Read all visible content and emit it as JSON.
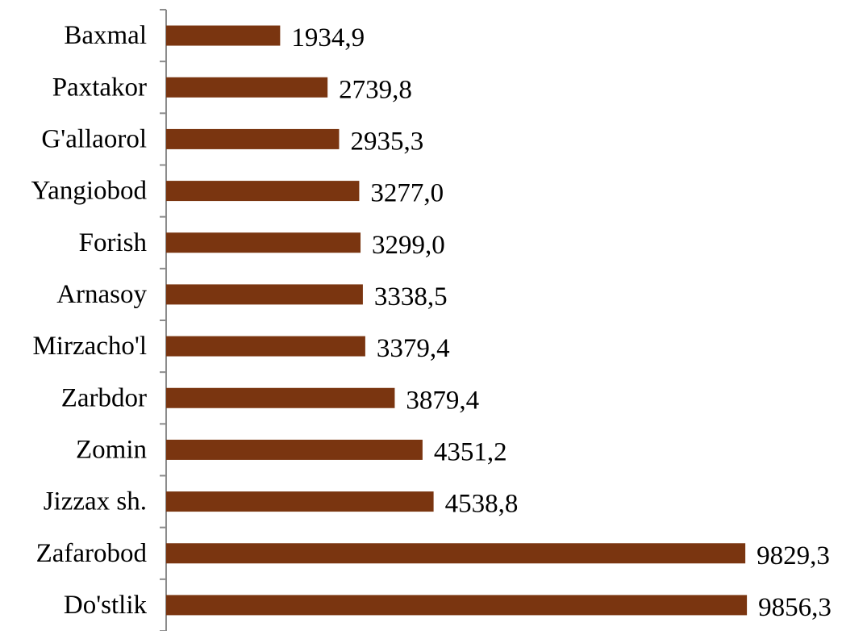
{
  "chart_data": {
    "type": "bar",
    "orientation": "horizontal",
    "title": "",
    "xlabel": "",
    "ylabel": "",
    "categories": [
      "Baxmal",
      "Paxtakor",
      "G'allaorol",
      "Yangiobod",
      "Forish",
      "Arnasoy",
      "Mirzacho'l",
      "Zarbdor",
      "Zomin",
      "Jizzax sh.",
      "Zafarobod",
      "Do'stlik"
    ],
    "values": [
      1934.9,
      2739.8,
      2935.3,
      3277.0,
      3299.0,
      3338.5,
      3379.4,
      3879.4,
      4351.2,
      4538.8,
      9829.3,
      9856.3
    ],
    "value_labels": [
      "1934,9",
      "2739,8",
      "2935,3",
      "3277,0",
      "3299,0",
      "3338,5",
      "3379,4",
      "3879,4",
      "4351,2",
      "4538,8",
      "9829,3",
      "9856,3"
    ],
    "xlim": [
      0,
      10000
    ],
    "grid": false,
    "legend": "none",
    "bar_color": "#7A3510",
    "axis_color": "#8C8C8C"
  }
}
